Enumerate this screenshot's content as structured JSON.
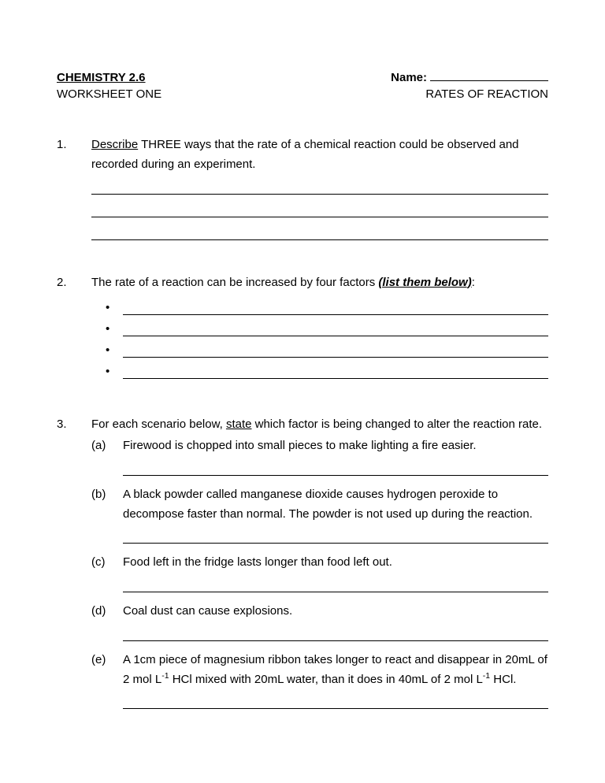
{
  "header": {
    "title_left": "CHEMISTRY 2.6",
    "name_label": "Name:",
    "subtitle_left": "WORKSHEET ONE",
    "subtitle_right": "RATES OF REACTION"
  },
  "q1": {
    "num": "1.",
    "verb": "Describe",
    "rest": " THREE ways that the rate of a chemical reaction could be observed and recorded during an experiment."
  },
  "q2": {
    "num": "2.",
    "lead": "The rate of a reaction can be increased by four factors ",
    "emph": "(list them below)",
    "colon": ":"
  },
  "q3": {
    "num": "3.",
    "lead1": "For each scenario below, ",
    "u": "state",
    "lead2": " which factor is being changed to alter the reaction rate.",
    "a": {
      "label": "(a)",
      "text": "Firewood is chopped into small pieces to make lighting a fire easier."
    },
    "b": {
      "label": "(b)",
      "text": "A black powder called manganese dioxide causes hydrogen peroxide to decompose faster than normal. The powder is not used up during the reaction."
    },
    "c": {
      "label": "(c)",
      "text": "Food left in the fridge lasts longer than food left out."
    },
    "d": {
      "label": "(d)",
      "text": "Coal dust can cause explosions."
    },
    "e": {
      "label": "(e)",
      "p1": "A 1cm piece of magnesium ribbon takes longer to react and disappear in 20mL of 2 mol L",
      "sup1": "-1",
      "p2": " HCl mixed with 20mL water, than it does in 40mL of 2 mol L",
      "sup2": "-1",
      "p3": " HCl."
    }
  }
}
